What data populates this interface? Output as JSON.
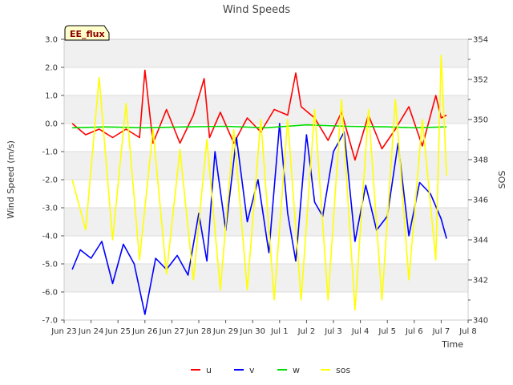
{
  "chart_data": {
    "type": "line",
    "title": "Wind Speeds",
    "badge": "EE_flux",
    "xlabel": "Time",
    "ylabel": "Wind Speed (m/s)",
    "y2label": "SOS",
    "ylim": [
      -7.0,
      3.0
    ],
    "y2lim": [
      340,
      354
    ],
    "grid": true,
    "legend_position": "bottom-center",
    "x_ticks": [
      "Jun 23",
      "Jun 24",
      "Jun 25",
      "Jun 26",
      "Jun 27",
      "Jun 28",
      "Jun 29",
      "Jun 30",
      "Jul 1",
      "Jul 2",
      "Jul 3",
      "Jul 4",
      "Jul 5",
      "Jul 6",
      "Jul 7",
      "Jul 8"
    ],
    "y_ticks": [
      "3.0",
      "2.0",
      "1.0",
      "0.0",
      "-1.0",
      "-2.0",
      "-3.0",
      "-4.0",
      "-5.0",
      "-6.0",
      "-7.0"
    ],
    "y2_ticks": [
      "354",
      "352",
      "350",
      "348",
      "346",
      "344",
      "342",
      "340"
    ],
    "x_day_range": [
      0,
      15
    ],
    "series": [
      {
        "name": "u",
        "axis": "left",
        "color": "#ff0000",
        "x": [
          0.3,
          0.8,
          1.3,
          1.8,
          2.3,
          2.8,
          3.0,
          3.3,
          3.8,
          4.3,
          4.8,
          5.2,
          5.4,
          5.8,
          6.3,
          6.8,
          7.3,
          7.8,
          8.3,
          8.6,
          8.8,
          9.3,
          9.8,
          10.3,
          10.8,
          11.3,
          11.8,
          12.3,
          12.8,
          13.3,
          13.8,
          14.0,
          14.2
        ],
        "y": [
          0.0,
          -0.4,
          -0.2,
          -0.5,
          -0.2,
          -0.5,
          1.9,
          -0.7,
          0.5,
          -0.7,
          0.3,
          1.6,
          -0.5,
          0.4,
          -0.7,
          0.2,
          -0.3,
          0.5,
          0.3,
          1.8,
          0.6,
          0.2,
          -0.6,
          0.4,
          -1.3,
          0.3,
          -0.9,
          -0.2,
          0.6,
          -0.8,
          1.0,
          0.2,
          0.3
        ]
      },
      {
        "name": "v",
        "axis": "left",
        "color": "#0000ff",
        "x": [
          0.3,
          0.6,
          1.0,
          1.4,
          1.8,
          2.2,
          2.6,
          3.0,
          3.4,
          3.8,
          4.2,
          4.6,
          5.0,
          5.3,
          5.6,
          6.0,
          6.4,
          6.8,
          7.2,
          7.6,
          8.0,
          8.3,
          8.6,
          9.0,
          9.3,
          9.6,
          10.0,
          10.4,
          10.8,
          11.2,
          11.6,
          12.0,
          12.4,
          12.8,
          13.2,
          13.6,
          14.0,
          14.2
        ],
        "y": [
          -5.2,
          -4.5,
          -4.8,
          -4.2,
          -5.7,
          -4.3,
          -5.0,
          -6.8,
          -4.8,
          -5.2,
          -4.7,
          -5.4,
          -3.2,
          -4.9,
          -1.0,
          -3.8,
          -0.5,
          -3.5,
          -2.0,
          -4.6,
          0.0,
          -3.2,
          -4.9,
          -0.4,
          -2.8,
          -3.3,
          -1.0,
          -0.3,
          -4.2,
          -2.2,
          -3.8,
          -3.3,
          -0.7,
          -4.0,
          -2.1,
          -2.5,
          -3.4,
          -4.1
        ]
      },
      {
        "name": "w",
        "axis": "left",
        "color": "#00dd00",
        "x": [
          0.3,
          1.5,
          3.0,
          4.5,
          6.0,
          7.5,
          9.0,
          10.5,
          12.0,
          13.0,
          14.2
        ],
        "y": [
          -0.15,
          -0.12,
          -0.15,
          -0.12,
          -0.1,
          -0.15,
          -0.05,
          -0.1,
          -0.12,
          -0.15,
          -0.12
        ]
      },
      {
        "name": "sos",
        "axis": "right",
        "color": "#ffff00",
        "x": [
          0.3,
          0.8,
          1.3,
          1.8,
          2.3,
          2.8,
          3.3,
          3.8,
          4.3,
          4.8,
          5.3,
          5.8,
          6.3,
          6.8,
          7.3,
          7.8,
          8.3,
          8.8,
          9.3,
          9.8,
          10.3,
          10.8,
          11.3,
          11.8,
          12.3,
          12.8,
          13.3,
          13.8,
          14.0,
          14.2
        ],
        "y": [
          347.0,
          344.5,
          352.1,
          344.0,
          350.8,
          343.0,
          349.5,
          342.3,
          348.5,
          342.0,
          349.0,
          341.5,
          349.5,
          341.5,
          350.0,
          341.0,
          350.0,
          341.0,
          350.5,
          341.0,
          351.0,
          340.5,
          350.5,
          341.0,
          351.0,
          342.0,
          350.0,
          343.0,
          353.2,
          347.2
        ]
      }
    ]
  }
}
